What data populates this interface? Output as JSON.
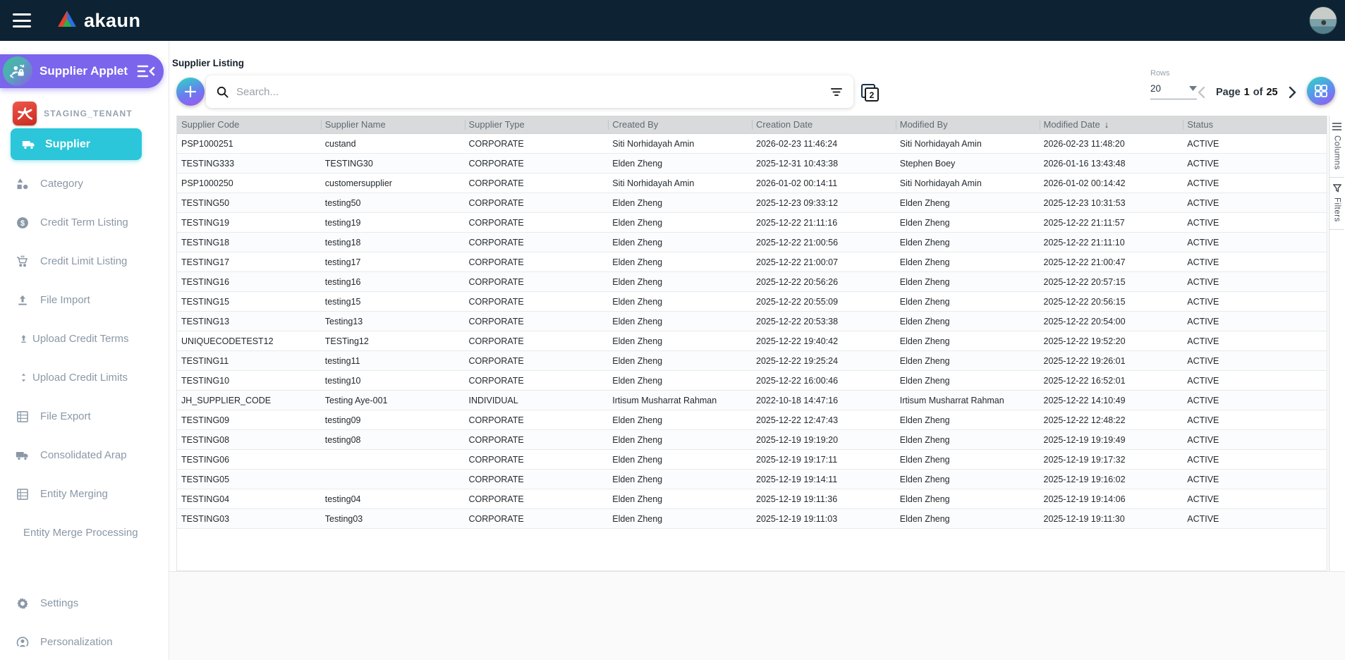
{
  "navbar": {
    "brand": "akaun"
  },
  "sidebar": {
    "applet_label": "Supplier Applet",
    "tenant_label": "STAGING_TENANT",
    "items": [
      {
        "label": "Supplier",
        "icon": "truck-icon",
        "section": "active"
      },
      {
        "label": "Category",
        "icon": "shapes-icon",
        "section": "menu"
      },
      {
        "label": "Credit Term Listing",
        "icon": "dollar-icon",
        "section": "menu"
      },
      {
        "label": "Credit Limit Listing",
        "icon": "cart-icon",
        "section": "menu"
      },
      {
        "label": "File Import",
        "icon": "upload-icon",
        "section": "menu"
      },
      {
        "label": "Upload Credit Terms",
        "icon": "upload-small-icon",
        "section": "menu",
        "small": true
      },
      {
        "label": "Upload Credit Limits",
        "icon": "updown-small-icon",
        "section": "menu",
        "small": true
      },
      {
        "label": "File Export",
        "icon": "list-icon",
        "section": "menu"
      },
      {
        "label": "Consolidated Arap",
        "icon": "truck-icon",
        "section": "menu"
      },
      {
        "label": "Entity Merging",
        "icon": "list-icon",
        "section": "menu"
      },
      {
        "label": "Entity Merge Processing",
        "icon": "",
        "section": "menu",
        "small": true
      },
      {
        "label": "Settings",
        "icon": "gear-icon",
        "section": "bottom"
      },
      {
        "label": "Personalization",
        "icon": "person-icon",
        "section": "bottom"
      }
    ]
  },
  "main": {
    "title": "Supplier Listing",
    "search_placeholder": "Search...",
    "rows_label": "Rows",
    "rows_per_page": "20",
    "pagination": {
      "page_word": "Page",
      "current_page": "1",
      "of_word": "of",
      "total_pages": "25"
    },
    "side_panel": {
      "columns_label": "Columns",
      "filters_label": "Filters"
    }
  },
  "table": {
    "columns": [
      {
        "label": "Supplier Code"
      },
      {
        "label": "Supplier Name"
      },
      {
        "label": "Supplier Type"
      },
      {
        "label": "Created By"
      },
      {
        "label": "Creation Date"
      },
      {
        "label": "Modified By"
      },
      {
        "label": "Modified Date",
        "sorted": "desc"
      },
      {
        "label": "Status"
      }
    ],
    "rows": [
      [
        "PSP1000251",
        "custand",
        "CORPORATE",
        "Siti Norhidayah Amin",
        "2026-02-23 11:46:24",
        "Siti Norhidayah Amin",
        "2026-02-23 11:48:20",
        "ACTIVE"
      ],
      [
        "TESTING333",
        "TESTING30",
        "CORPORATE",
        "Elden Zheng",
        "2025-12-31 10:43:38",
        "Stephen Boey",
        "2026-01-16 13:43:48",
        "ACTIVE"
      ],
      [
        "PSP1000250",
        "customersupplier",
        "CORPORATE",
        "Siti Norhidayah Amin",
        "2026-01-02 00:14:11",
        "Siti Norhidayah Amin",
        "2026-01-02 00:14:42",
        "ACTIVE"
      ],
      [
        "TESTING50",
        "testing50",
        "CORPORATE",
        "Elden Zheng",
        "2025-12-23 09:33:12",
        "Elden Zheng",
        "2025-12-23 10:31:53",
        "ACTIVE"
      ],
      [
        "TESTING19",
        "testing19",
        "CORPORATE",
        "Elden Zheng",
        "2025-12-22 21:11:16",
        "Elden Zheng",
        "2025-12-22 21:11:57",
        "ACTIVE"
      ],
      [
        "TESTING18",
        "testing18",
        "CORPORATE",
        "Elden Zheng",
        "2025-12-22 21:00:56",
        "Elden Zheng",
        "2025-12-22 21:11:10",
        "ACTIVE"
      ],
      [
        "TESTING17",
        "testing17",
        "CORPORATE",
        "Elden Zheng",
        "2025-12-22 21:00:07",
        "Elden Zheng",
        "2025-12-22 21:00:47",
        "ACTIVE"
      ],
      [
        "TESTING16",
        "testing16",
        "CORPORATE",
        "Elden Zheng",
        "2025-12-22 20:56:26",
        "Elden Zheng",
        "2025-12-22 20:57:15",
        "ACTIVE"
      ],
      [
        "TESTING15",
        "testing15",
        "CORPORATE",
        "Elden Zheng",
        "2025-12-22 20:55:09",
        "Elden Zheng",
        "2025-12-22 20:56:15",
        "ACTIVE"
      ],
      [
        "TESTING13",
        "Testing13",
        "CORPORATE",
        "Elden Zheng",
        "2025-12-22 20:53:38",
        "Elden Zheng",
        "2025-12-22 20:54:00",
        "ACTIVE"
      ],
      [
        "UNIQUECODETEST12",
        "TESTing12",
        "CORPORATE",
        "Elden Zheng",
        "2025-12-22 19:40:42",
        "Elden Zheng",
        "2025-12-22 19:52:20",
        "ACTIVE"
      ],
      [
        "TESTING11",
        "testing11",
        "CORPORATE",
        "Elden Zheng",
        "2025-12-22 19:25:24",
        "Elden Zheng",
        "2025-12-22 19:26:01",
        "ACTIVE"
      ],
      [
        "TESTING10",
        "testing10",
        "CORPORATE",
        "Elden Zheng",
        "2025-12-22 16:00:46",
        "Elden Zheng",
        "2025-12-22 16:52:01",
        "ACTIVE"
      ],
      [
        "JH_SUPPLIER_CODE",
        "Testing Aye-001",
        "INDIVIDUAL",
        "Irtisum Musharrat Rahman",
        "2022-10-18 14:47:16",
        "Irtisum Musharrat Rahman",
        "2025-12-22 14:10:49",
        "ACTIVE"
      ],
      [
        "TESTING09",
        "testing09",
        "CORPORATE",
        "Elden Zheng",
        "2025-12-22 12:47:43",
        "Elden Zheng",
        "2025-12-22 12:48:22",
        "ACTIVE"
      ],
      [
        "TESTING08",
        "testing08",
        "CORPORATE",
        "Elden Zheng",
        "2025-12-19 19:19:20",
        "Elden Zheng",
        "2025-12-19 19:19:49",
        "ACTIVE"
      ],
      [
        "TESTING06",
        "",
        "CORPORATE",
        "Elden Zheng",
        "2025-12-19 19:17:11",
        "Elden Zheng",
        "2025-12-19 19:17:32",
        "ACTIVE"
      ],
      [
        "TESTING05",
        "",
        "CORPORATE",
        "Elden Zheng",
        "2025-12-19 19:14:11",
        "Elden Zheng",
        "2025-12-19 19:16:02",
        "ACTIVE"
      ],
      [
        "TESTING04",
        "testing04",
        "CORPORATE",
        "Elden Zheng",
        "2025-12-19 19:11:36",
        "Elden Zheng",
        "2025-12-19 19:14:06",
        "ACTIVE"
      ],
      [
        "TESTING03",
        "Testing03",
        "CORPORATE",
        "Elden Zheng",
        "2025-12-19 19:11:03",
        "Elden Zheng",
        "2025-12-19 19:11:30",
        "ACTIVE"
      ]
    ]
  },
  "colors": {
    "navbar_bg": "#0d2232",
    "accent_purple": "#7a65ec",
    "accent_teal": "#2bc6d9",
    "gradient_teal": "#2fd3c5",
    "gradient_purple": "#a055f0",
    "tenant_red": "#d9392d",
    "table_header_bg": "#d9dadb"
  }
}
